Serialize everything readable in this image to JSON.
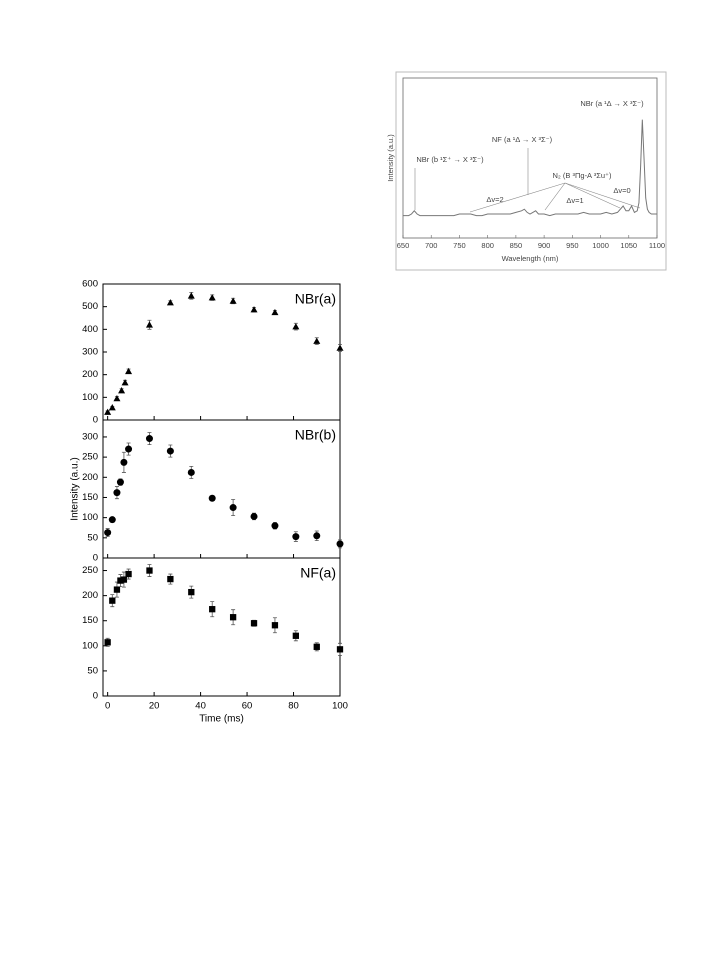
{
  "chart_data": [
    {
      "type": "line",
      "xlabel": "Wavelength (nm)",
      "ylabel": "Intensity (a.u.)",
      "color": "#777777",
      "xlim": [
        650,
        1100
      ],
      "xticks": [
        650,
        700,
        750,
        800,
        850,
        900,
        950,
        1000,
        1050,
        1100
      ],
      "ylim": [
        0,
        1
      ],
      "x": [
        650,
        660,
        665,
        670,
        675,
        680,
        690,
        700,
        710,
        720,
        730,
        740,
        750,
        760,
        770,
        780,
        790,
        800,
        810,
        820,
        830,
        840,
        850,
        860,
        865,
        870,
        875,
        880,
        885,
        890,
        900,
        910,
        920,
        930,
        940,
        950,
        960,
        970,
        980,
        990,
        1000,
        1010,
        1020,
        1030,
        1040,
        1045,
        1050,
        1055,
        1060,
        1065,
        1068,
        1071,
        1074,
        1077,
        1080,
        1083,
        1086,
        1090,
        1095,
        1100
      ],
      "values": [
        0.14,
        0.14,
        0.15,
        0.17,
        0.15,
        0.14,
        0.14,
        0.14,
        0.14,
        0.14,
        0.14,
        0.14,
        0.15,
        0.15,
        0.15,
        0.14,
        0.14,
        0.15,
        0.15,
        0.15,
        0.15,
        0.15,
        0.16,
        0.17,
        0.18,
        0.16,
        0.15,
        0.16,
        0.17,
        0.15,
        0.15,
        0.14,
        0.15,
        0.15,
        0.15,
        0.15,
        0.15,
        0.16,
        0.15,
        0.15,
        0.15,
        0.16,
        0.15,
        0.16,
        0.2,
        0.17,
        0.17,
        0.2,
        0.16,
        0.17,
        0.22,
        0.45,
        0.74,
        0.5,
        0.25,
        0.18,
        0.16,
        0.15,
        0.15,
        0.15
      ],
      "annotations": [
        "NBr (a ¹Δ → X ³Σ⁻)",
        "NF (a ¹Δ → X ³Σ⁻)",
        "NBr (b ¹Σ⁺ → X ³Σ⁻)",
        "N₂ (B ³Πg-A ³Σu⁺)",
        "Δv=2",
        "Δv=1",
        "Δv=0"
      ]
    },
    {
      "type": "scatter",
      "label": "NBr(a)",
      "marker": "triangle",
      "color": "#000000",
      "show_xtick_labels": false,
      "xlim": [
        -2,
        100
      ],
      "xticks": [
        0,
        20,
        40,
        60,
        80,
        100
      ],
      "ylim": [
        0,
        600
      ],
      "yticks": [
        0,
        100,
        200,
        300,
        400,
        500,
        600
      ],
      "x": [
        0,
        2,
        4,
        6,
        7.5,
        9,
        18,
        27,
        36,
        45,
        54,
        63,
        72,
        81,
        90,
        100
      ],
      "values": [
        35,
        55,
        95,
        130,
        165,
        215,
        420,
        518,
        548,
        540,
        525,
        487,
        475,
        412,
        348,
        318
      ],
      "errors": [
        5,
        5,
        8,
        8,
        10,
        10,
        20,
        8,
        15,
        12,
        12,
        10,
        8,
        15,
        15,
        15
      ]
    },
    {
      "type": "scatter",
      "label": "NBr(b)",
      "ylabel": "Intensity (a.u.)",
      "marker": "circle",
      "color": "#000000",
      "show_xtick_labels": false,
      "xlim": [
        -2,
        100
      ],
      "xticks": [
        0,
        20,
        40,
        60,
        80,
        100
      ],
      "ylim": [
        0,
        342
      ],
      "yticks": [
        0,
        50,
        100,
        150,
        200,
        250,
        300
      ],
      "x": [
        0,
        2,
        4,
        5.5,
        7,
        9,
        18,
        27,
        36,
        45,
        54,
        63,
        72,
        81,
        90,
        100
      ],
      "values": [
        63,
        95,
        162,
        188,
        237,
        270,
        296,
        265,
        212,
        148,
        125,
        103,
        80,
        53,
        55,
        35
      ],
      "errors": [
        10,
        5,
        15,
        8,
        25,
        15,
        15,
        15,
        15,
        5,
        20,
        8,
        8,
        12,
        12,
        10
      ]
    },
    {
      "type": "scatter",
      "label": "NF(a)",
      "xlabel": "Time (ms)",
      "marker": "square",
      "color": "#000000",
      "show_xtick_labels": true,
      "xlim": [
        -2,
        100
      ],
      "xticks": [
        0,
        20,
        40,
        60,
        80,
        100
      ],
      "ylim": [
        0,
        275
      ],
      "yticks": [
        0,
        50,
        100,
        150,
        200,
        250
      ],
      "x": [
        0,
        2,
        4,
        5.5,
        7,
        9,
        18,
        27,
        36,
        45,
        54,
        63,
        72,
        81,
        90,
        100
      ],
      "values": [
        107,
        190,
        212,
        230,
        232,
        243,
        250,
        233,
        207,
        173,
        157,
        145,
        141,
        120,
        98,
        93
      ],
      "errors": [
        8,
        12,
        15,
        12,
        15,
        10,
        12,
        10,
        12,
        15,
        15,
        6,
        15,
        10,
        8,
        12
      ]
    }
  ]
}
